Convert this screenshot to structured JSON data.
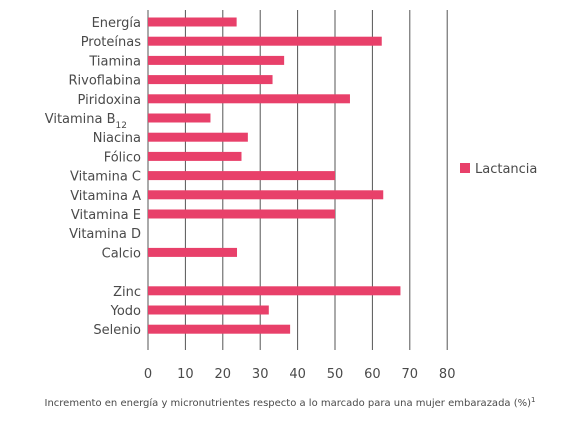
{
  "chart_data": {
    "type": "bar",
    "orientation": "horizontal",
    "categories": [
      "Energía",
      "Proteínas",
      "Tiamina",
      "Rivoflabina",
      "Piridoxina",
      "Vitamina B",
      "Niacina",
      "Fólico",
      "Vitamina C",
      "Vitamina A",
      "Vitamina E",
      "Vitamina D",
      "Calcio",
      "",
      "Zinc",
      "Yodo",
      "Selenio"
    ],
    "category_subscripts": {
      "5": "12"
    },
    "series": [
      {
        "name": "Lactancia",
        "values": [
          23.7,
          62.5,
          36.4,
          33.3,
          54.0,
          16.7,
          26.7,
          25.0,
          50.0,
          62.9,
          50.0,
          0,
          23.8,
          null,
          67.5,
          32.3,
          38.0
        ]
      }
    ],
    "xlabel": "Incremento en energía y micronutrientes respecto a lo marcado para una mujer embarazada (%)",
    "xlabel_superscript": "1",
    "xlim": [
      0,
      80
    ],
    "xticks": [
      0,
      10,
      20,
      30,
      40,
      50,
      60,
      70,
      80
    ],
    "grid": "vertical",
    "legend": "right",
    "colors": {
      "bar": "#e8406a",
      "grid": "#555555",
      "text": "#4a4a4a"
    }
  }
}
